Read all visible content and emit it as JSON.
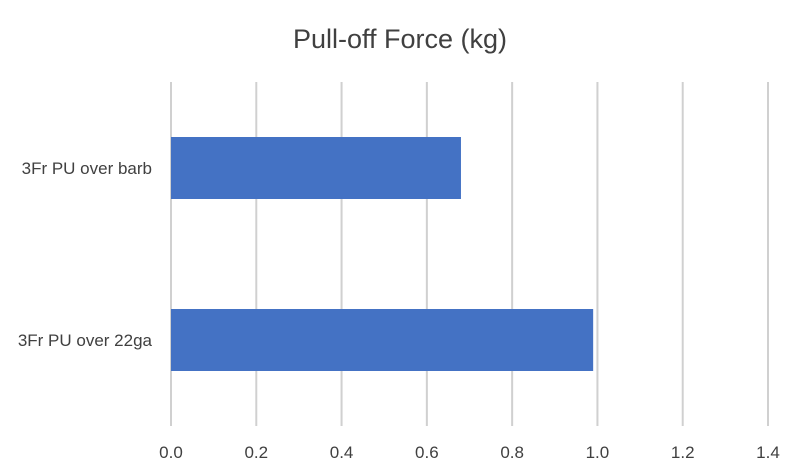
{
  "chart_data": {
    "type": "bar",
    "orientation": "horizontal",
    "title": "Pull-off Force (kg)",
    "xlabel": "",
    "ylabel": "",
    "categories": [
      "3Fr PU over barb",
      "3Fr PU over 22ga"
    ],
    "values": [
      0.68,
      0.99
    ],
    "xlim": [
      0.0,
      1.4
    ],
    "x_ticks": [
      "0.0",
      "0.2",
      "0.4",
      "0.6",
      "0.8",
      "1.0",
      "1.2",
      "1.4"
    ],
    "x_tick_values": [
      0.0,
      0.2,
      0.4,
      0.6,
      0.8,
      1.0,
      1.2,
      1.4
    ],
    "grid": true,
    "legend": "none",
    "bar_color": "#4472C4",
    "grid_color": "#D0D0D0",
    "text_color": "#404040"
  }
}
